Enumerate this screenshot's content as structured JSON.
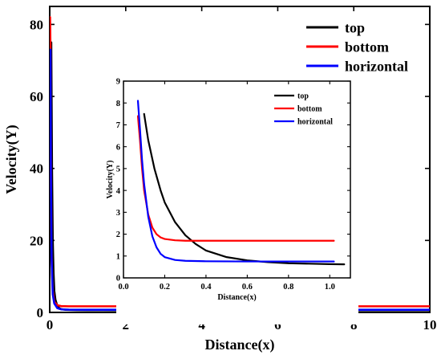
{
  "chart_data": [
    {
      "id": "main",
      "type": "line",
      "xlabel": "Distance(x)",
      "ylabel": "Velocity(Y)",
      "xlim": [
        0,
        10
      ],
      "ylim": [
        0,
        85
      ],
      "xticks": [
        0,
        2,
        4,
        6,
        8,
        10
      ],
      "xtick_labels": [
        "0",
        "2",
        "4",
        "6",
        "8",
        "10"
      ],
      "yticks": [
        0,
        20,
        40,
        60,
        80
      ],
      "ytick_labels": [
        "0",
        "20",
        "40",
        "60",
        "80"
      ],
      "grid": false,
      "legend_position": "top-right",
      "series": [
        {
          "name": "top",
          "color": "#000000",
          "x": [
            0.04,
            0.06,
            0.08,
            0.1,
            0.12,
            0.15,
            0.2,
            0.25,
            0.3,
            0.4,
            0.5,
            0.7,
            1,
            2,
            4,
            6,
            8,
            10
          ],
          "y": [
            75,
            40,
            20,
            11,
            6,
            3.5,
            1.8,
            1.2,
            0.9,
            0.75,
            0.7,
            0.65,
            0.62,
            0.6,
            0.6,
            0.6,
            0.6,
            0.6
          ]
        },
        {
          "name": "bottom",
          "color": "#ff0000",
          "x": [
            0.01,
            0.02,
            0.03,
            0.05,
            0.08,
            0.12,
            0.2,
            0.3,
            0.5,
            1,
            2,
            4,
            6,
            8,
            10
          ],
          "y": [
            82,
            72,
            40,
            15,
            6,
            3,
            2,
            1.75,
            1.7,
            1.7,
            1.7,
            1.7,
            1.7,
            1.7,
            1.7
          ]
        },
        {
          "name": "horizontal",
          "color": "#0000ff",
          "x": [
            0.02,
            0.03,
            0.05,
            0.08,
            0.12,
            0.2,
            0.3,
            0.5,
            1,
            2,
            4,
            6,
            8,
            10
          ],
          "y": [
            73,
            40,
            15,
            5,
            2.5,
            1.2,
            0.85,
            0.77,
            0.75,
            0.75,
            0.75,
            0.75,
            0.75,
            0.75
          ]
        }
      ]
    },
    {
      "id": "inset",
      "type": "line",
      "xlabel": "Distance(x)",
      "ylabel": "Velocity(Y)",
      "xlim": [
        0,
        1.1
      ],
      "ylim": [
        0,
        9
      ],
      "xticks": [
        0,
        0.2,
        0.4,
        0.6,
        0.8,
        1.0
      ],
      "xtick_labels": [
        "0.0",
        "0.2",
        "0.4",
        "0.6",
        "0.8",
        "1.0"
      ],
      "yticks": [
        0,
        1,
        2,
        3,
        4,
        5,
        6,
        7,
        8,
        9
      ],
      "ytick_labels": [
        "0",
        "1",
        "2",
        "3",
        "4",
        "5",
        "6",
        "7",
        "8",
        "9"
      ],
      "grid": false,
      "legend_position": "top-right",
      "series": [
        {
          "name": "top",
          "color": "#000000",
          "x": [
            0.1,
            0.12,
            0.15,
            0.18,
            0.2,
            0.25,
            0.3,
            0.35,
            0.4,
            0.5,
            0.6,
            0.7,
            0.8,
            0.9,
            1.0,
            1.07
          ],
          "y": [
            7.5,
            6.3,
            5.0,
            4.0,
            3.45,
            2.55,
            1.95,
            1.55,
            1.25,
            0.95,
            0.8,
            0.72,
            0.67,
            0.65,
            0.63,
            0.62
          ]
        },
        {
          "name": "bottom",
          "color": "#ff0000",
          "x": [
            0.07,
            0.08,
            0.09,
            0.1,
            0.12,
            0.14,
            0.16,
            0.18,
            0.2,
            0.25,
            0.3,
            0.4,
            0.6,
            0.8,
            1.0,
            1.02
          ],
          "y": [
            7.4,
            6.3,
            5.0,
            4.0,
            2.9,
            2.3,
            2.0,
            1.85,
            1.78,
            1.72,
            1.7,
            1.7,
            1.7,
            1.7,
            1.7,
            1.7
          ]
        },
        {
          "name": "horizontal",
          "color": "#0000ff",
          "x": [
            0.07,
            0.08,
            0.09,
            0.1,
            0.12,
            0.14,
            0.16,
            0.18,
            0.2,
            0.25,
            0.3,
            0.4,
            0.6,
            0.8,
            1.0,
            1.02
          ],
          "y": [
            8.1,
            6.8,
            5.4,
            4.3,
            2.8,
            1.9,
            1.4,
            1.1,
            0.95,
            0.82,
            0.78,
            0.76,
            0.75,
            0.75,
            0.75,
            0.75
          ]
        }
      ]
    }
  ]
}
